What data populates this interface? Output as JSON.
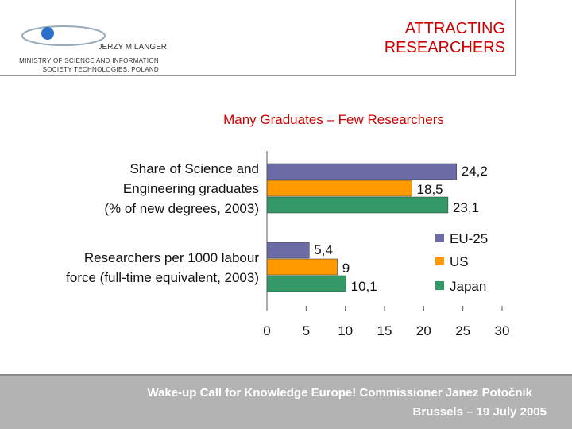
{
  "header": {
    "author": "JERZY M LANGER",
    "affiliation": "MINISTRY OF SCIENCE AND INFORMATION\nSOCIETY TECHNOLOGIES,  POLAND",
    "title": "ATTRACTING\nRESEARCHERS"
  },
  "chart_data": {
    "type": "barh",
    "title": "Many Graduates – Few Researchers",
    "categories": [
      "Share of Science and\nEngineering graduates\n(% of new degrees, 2003)",
      "Researchers per 1000 labour\nforce (full-time equivalent, 2003)"
    ],
    "series": [
      {
        "name": "EU-25",
        "color": "#6b6ba6",
        "values": [
          24.2,
          5.4
        ],
        "value_labels": [
          "24,2",
          "5,4"
        ]
      },
      {
        "name": "US",
        "color": "#ff9900",
        "values": [
          18.5,
          9
        ],
        "value_labels": [
          "18,5",
          "9"
        ]
      },
      {
        "name": "Japan",
        "color": "#339966",
        "values": [
          23.1,
          10.1
        ],
        "value_labels": [
          "23,1",
          "10,1"
        ]
      }
    ],
    "xlim": [
      0,
      30
    ],
    "xticks": [
      0,
      5,
      10,
      15,
      20,
      25,
      30
    ],
    "legend": "right"
  },
  "footer": {
    "line1": "Wake-up Call for Knowledge Europe! Commissioner Janez Potočnik",
    "line2": "Brussels – 19 July 2005"
  }
}
